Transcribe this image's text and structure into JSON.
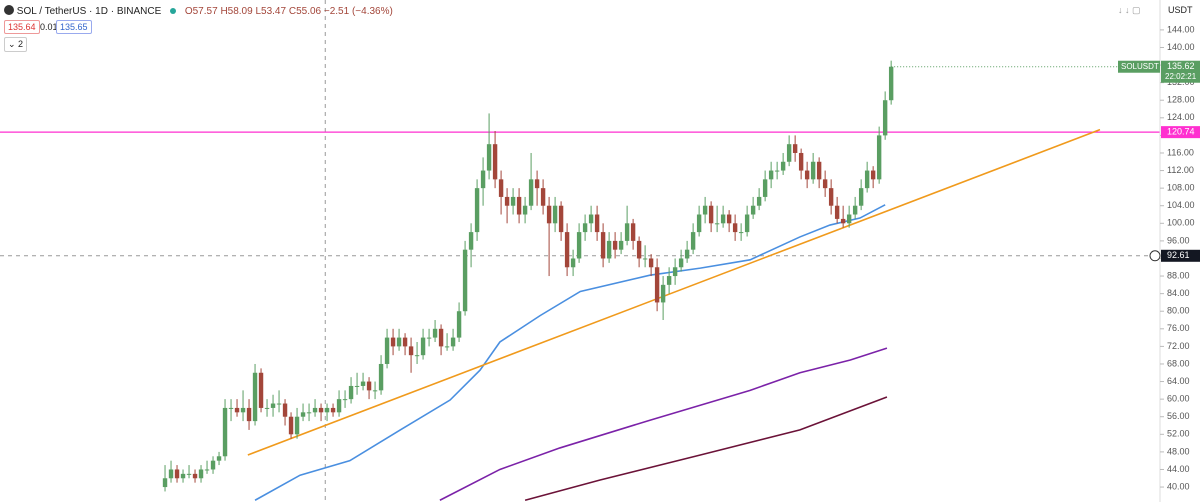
{
  "header": {
    "symbol": "SOL / TetherUS · 1D · BINANCE",
    "ohlc": [
      "O57.57",
      "H58.09",
      "L53.47",
      "C55.06",
      "−2.51 (−4.36%)"
    ],
    "bid": "135.64",
    "spread": "0.01",
    "ask": "135.65",
    "indicators": "2",
    "currency": "USDT"
  },
  "chart_data": {
    "type": "candlestick",
    "up_color": "#5a9e62",
    "down_color": "#a3463a",
    "xlim": [
      -27.5,
      165.8
    ],
    "ylim": [
      36.6,
      150.8
    ],
    "yticks": [
      {
        "value": 40,
        "label": "40.00"
      },
      {
        "value": 44,
        "label": "44.00"
      },
      {
        "value": 48,
        "label": "48.00"
      },
      {
        "value": 52,
        "label": "52.00"
      },
      {
        "value": 56,
        "label": "56.00"
      },
      {
        "value": 60,
        "label": "60.00"
      },
      {
        "value": 64,
        "label": "64.00"
      },
      {
        "value": 68,
        "label": "68.00"
      },
      {
        "value": 72,
        "label": "72.00"
      },
      {
        "value": 76,
        "label": "76.00"
      },
      {
        "value": 80,
        "label": "80.00"
      },
      {
        "value": 84,
        "label": "84.00"
      },
      {
        "value": 88,
        "label": "88.00"
      },
      {
        "value": 92,
        "label": "92.00"
      },
      {
        "value": 96,
        "label": "96.00"
      },
      {
        "value": 100,
        "label": "100.00"
      },
      {
        "value": 104,
        "label": "104.00"
      },
      {
        "value": 108,
        "label": "108.00"
      },
      {
        "value": 112,
        "label": "112.00"
      },
      {
        "value": 116,
        "label": "116.00"
      },
      {
        "value": 120,
        "label": "120.00"
      },
      {
        "value": 124,
        "label": "124.00"
      },
      {
        "value": 128,
        "label": "128.00"
      },
      {
        "value": 132,
        "label": "132.00"
      },
      {
        "value": 136,
        "label": "136.00"
      },
      {
        "value": 140,
        "label": "140.00"
      },
      {
        "value": 144,
        "label": "144.00"
      }
    ],
    "candles": [
      [
        40,
        45,
        39,
        42
      ],
      [
        42,
        46,
        41,
        44
      ],
      [
        44,
        45,
        41,
        42
      ],
      [
        42,
        44,
        41,
        43
      ],
      [
        43,
        45,
        42,
        43
      ],
      [
        43,
        44,
        41,
        42
      ],
      [
        42,
        45,
        41,
        44
      ],
      [
        44,
        46,
        43,
        44
      ],
      [
        44,
        47,
        43,
        46
      ],
      [
        46,
        48,
        45,
        47
      ],
      [
        47,
        60,
        46,
        58
      ],
      [
        58,
        60,
        55,
        58
      ],
      [
        58,
        60,
        56,
        57
      ],
      [
        57,
        62,
        55,
        58
      ],
      [
        58,
        60,
        53,
        55
      ],
      [
        55,
        68,
        54,
        66
      ],
      [
        66,
        67,
        57,
        58
      ],
      [
        58,
        60,
        56,
        58
      ],
      [
        58,
        61,
        56,
        59
      ],
      [
        59,
        62,
        57,
        59
      ],
      [
        59,
        60,
        54,
        56
      ],
      [
        56,
        57,
        51,
        52
      ],
      [
        52,
        58,
        51,
        56
      ],
      [
        56,
        59,
        55,
        57
      ],
      [
        57,
        59,
        55,
        57
      ],
      [
        57,
        60,
        56,
        58
      ],
      [
        58,
        59,
        55,
        57
      ],
      [
        57,
        59,
        55,
        58
      ],
      [
        58,
        59,
        56,
        57
      ],
      [
        57,
        62,
        56,
        60
      ],
      [
        60,
        62,
        58,
        60
      ],
      [
        60,
        65,
        59,
        63
      ],
      [
        63,
        66,
        61,
        63
      ],
      [
        63,
        66,
        62,
        64
      ],
      [
        64,
        65,
        60,
        62
      ],
      [
        62,
        64,
        60,
        62
      ],
      [
        62,
        70,
        61,
        68
      ],
      [
        68,
        76,
        67,
        74
      ],
      [
        74,
        76,
        70,
        72
      ],
      [
        72,
        76,
        71,
        74
      ],
      [
        74,
        75,
        70,
        72
      ],
      [
        72,
        74,
        66,
        70
      ],
      [
        70,
        73,
        68,
        70
      ],
      [
        70,
        76,
        69,
        74
      ],
      [
        74,
        76,
        72,
        74
      ],
      [
        74,
        78,
        73,
        76
      ],
      [
        76,
        77,
        70,
        72
      ],
      [
        72,
        75,
        71,
        72
      ],
      [
        72,
        76,
        71,
        74
      ],
      [
        74,
        82,
        73,
        80
      ],
      [
        80,
        96,
        79,
        94
      ],
      [
        94,
        100,
        90,
        98
      ],
      [
        98,
        110,
        96,
        108
      ],
      [
        108,
        115,
        104,
        112
      ],
      [
        112,
        125,
        110,
        118
      ],
      [
        118,
        121,
        108,
        110
      ],
      [
        110,
        112,
        102,
        106
      ],
      [
        106,
        108,
        100,
        104
      ],
      [
        104,
        108,
        102,
        106
      ],
      [
        106,
        108,
        100,
        102
      ],
      [
        102,
        106,
        100,
        104
      ],
      [
        104,
        116,
        103,
        110
      ],
      [
        110,
        112,
        104,
        108
      ],
      [
        108,
        110,
        102,
        104
      ],
      [
        104,
        106,
        88,
        100
      ],
      [
        100,
        106,
        98,
        104
      ],
      [
        104,
        105,
        96,
        98
      ],
      [
        98,
        100,
        88,
        90
      ],
      [
        90,
        94,
        88,
        92
      ],
      [
        92,
        100,
        91,
        98
      ],
      [
        98,
        102,
        96,
        100
      ],
      [
        100,
        104,
        98,
        102
      ],
      [
        102,
        104,
        96,
        98
      ],
      [
        98,
        100,
        90,
        92
      ],
      [
        92,
        98,
        91,
        96
      ],
      [
        96,
        98,
        92,
        94
      ],
      [
        94,
        98,
        93,
        96
      ],
      [
        96,
        104,
        95,
        100
      ],
      [
        100,
        101,
        94,
        96
      ],
      [
        96,
        97,
        90,
        92
      ],
      [
        92,
        95,
        90,
        92
      ],
      [
        92,
        93,
        88,
        90
      ],
      [
        90,
        92,
        80,
        82
      ],
      [
        82,
        88,
        78,
        86
      ],
      [
        86,
        90,
        84,
        88
      ],
      [
        88,
        92,
        86,
        90
      ],
      [
        90,
        94,
        89,
        92
      ],
      [
        92,
        96,
        91,
        94
      ],
      [
        94,
        100,
        93,
        98
      ],
      [
        98,
        104,
        97,
        102
      ],
      [
        102,
        106,
        100,
        104
      ],
      [
        104,
        105,
        98,
        100
      ],
      [
        100,
        104,
        98,
        100
      ],
      [
        100,
        104,
        99,
        102
      ],
      [
        102,
        103,
        98,
        100
      ],
      [
        100,
        102,
        96,
        98
      ],
      [
        98,
        100,
        96,
        98
      ],
      [
        98,
        104,
        97,
        102
      ],
      [
        102,
        106,
        101,
        104
      ],
      [
        104,
        108,
        103,
        106
      ],
      [
        106,
        112,
        105,
        110
      ],
      [
        110,
        114,
        108,
        112
      ],
      [
        112,
        114,
        110,
        112
      ],
      [
        112,
        116,
        111,
        114
      ],
      [
        114,
        120,
        113,
        118
      ],
      [
        118,
        120,
        114,
        116
      ],
      [
        116,
        117,
        110,
        112
      ],
      [
        112,
        114,
        108,
        110
      ],
      [
        110,
        116,
        109,
        114
      ],
      [
        114,
        115,
        108,
        110
      ],
      [
        110,
        112,
        106,
        108
      ],
      [
        108,
        110,
        102,
        104
      ],
      [
        104,
        106,
        100,
        101
      ],
      [
        101,
        104,
        99,
        100
      ],
      [
        100,
        104,
        99,
        102
      ],
      [
        102,
        106,
        101,
        104
      ],
      [
        104,
        110,
        103,
        108
      ],
      [
        108,
        114,
        107,
        112
      ],
      [
        112,
        113,
        108,
        110
      ],
      [
        110,
        122,
        109,
        120
      ],
      [
        120,
        130,
        119,
        128
      ],
      [
        128,
        137,
        127,
        135.62
      ]
    ],
    "series": [
      {
        "color": "#4a8fe0",
        "x": [
          15,
          22.5,
          30.8,
          39.2,
          47.5,
          52.5,
          55.8,
          62.5,
          69.2,
          80.8,
          89.2,
          97.5,
          105.8,
          110.8,
          115.8,
          120
        ],
        "values": [
          37,
          42.7,
          46,
          53,
          59.8,
          66.6,
          73,
          79,
          84.5,
          88.2,
          89.8,
          91.7,
          96.9,
          99.6,
          101.2,
          104.2
        ]
      },
      {
        "color": "#7b22a8",
        "x": [
          45.8,
          55.8,
          65.8,
          80.8,
          97.5,
          105.8,
          114.2,
          120.3
        ],
        "values": [
          37,
          44,
          48.9,
          55.2,
          62,
          66,
          68.9,
          71.6
        ]
      },
      {
        "color": "#6b1238",
        "x": [
          60,
          72.5,
          89.2,
          105.8,
          120.3
        ],
        "values": [
          37,
          41.6,
          47.3,
          53,
          60.5
        ]
      }
    ],
    "trendline": {
      "color": "#f09a1c",
      "x": [
        13.8,
        155.8
      ],
      "y": [
        47.3,
        121.3
      ]
    },
    "price_lines": [
      {
        "value": 120.74,
        "color": "#ff2fd0"
      }
    ],
    "last_price_symbol": "SOLUSDT",
    "countdown": "22:02:21",
    "crosshair": {
      "x": 26.7,
      "y": 92.61
    }
  }
}
